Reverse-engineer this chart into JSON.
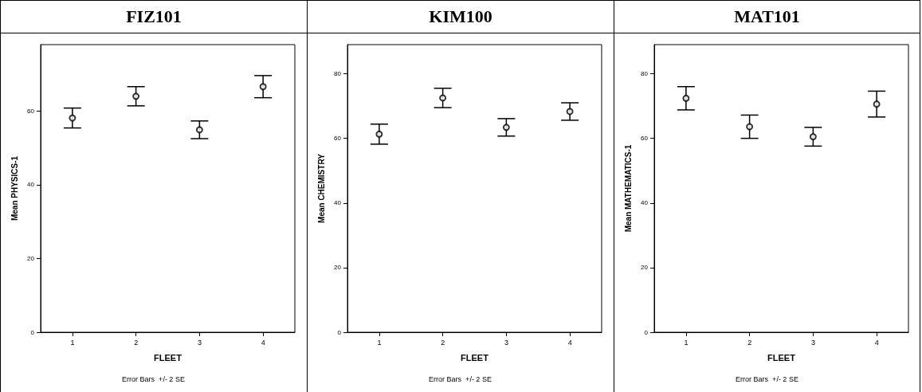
{
  "chart_data": [
    {
      "type": "scatter",
      "title": "FIZ101",
      "xlabel": "FLEET",
      "ylabel": "Mean PHYSICS-1",
      "categories": [
        "1",
        "2",
        "3",
        "4"
      ],
      "series": [
        {
          "color": "#000000",
          "values": [
            58.1,
            64.0,
            54.9,
            66.6
          ],
          "errors": [
            2.7,
            2.6,
            2.4,
            3.0
          ]
        }
      ],
      "ylim": [
        0,
        78
      ],
      "yticks": [
        0,
        20,
        40,
        60
      ],
      "marker": "circle",
      "grid": false,
      "annotations": [
        "Error Bars  +/- 2 SE"
      ]
    },
    {
      "type": "scatter",
      "title": "KIM100",
      "xlabel": "FLEET",
      "ylabel": "Mean CHEMISTRY",
      "categories": [
        "1",
        "2",
        "3",
        "4"
      ],
      "series": [
        {
          "color": "#000000",
          "values": [
            61.3,
            72.5,
            63.4,
            68.3
          ],
          "errors": [
            3.1,
            3.0,
            2.7,
            2.7
          ]
        }
      ],
      "ylim": [
        0,
        89
      ],
      "yticks": [
        0,
        20,
        40,
        60,
        80
      ],
      "marker": "circle",
      "grid": false,
      "annotations": [
        "Error Bars  +/- 2 SE"
      ]
    },
    {
      "type": "scatter",
      "title": "MAT101",
      "xlabel": "FLEET",
      "ylabel": "Mean MATHEMATICS-1",
      "categories": [
        "1",
        "2",
        "3",
        "4"
      ],
      "series": [
        {
          "color": "#000000",
          "values": [
            72.4,
            63.6,
            60.5,
            70.6
          ],
          "errors": [
            3.6,
            3.6,
            2.9,
            4.0
          ]
        }
      ],
      "ylim": [
        0,
        89
      ],
      "yticks": [
        0,
        20,
        40,
        60,
        80
      ],
      "marker": "circle",
      "grid": false,
      "annotations": [
        "Error Bars  +/- 2 SE"
      ]
    }
  ]
}
